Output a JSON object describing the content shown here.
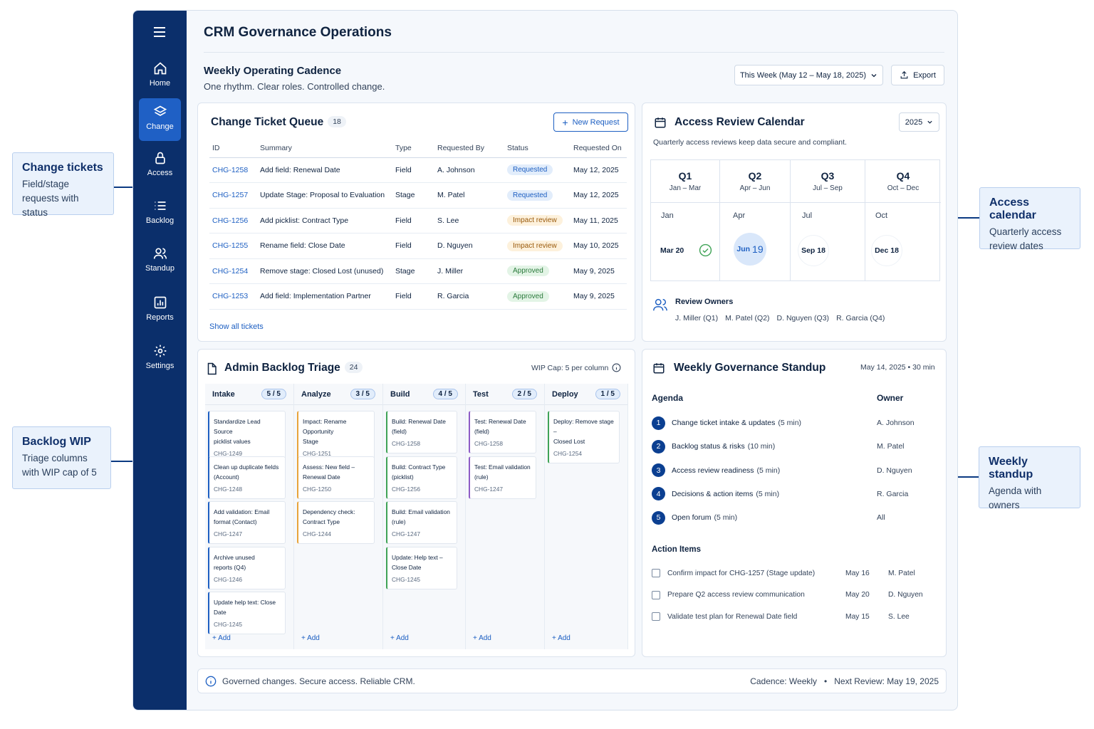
{
  "app_title": "CRM Governance Operations",
  "nav": [
    {
      "label": "Home",
      "icon": "home-icon"
    },
    {
      "label": "Change",
      "icon": "layers-icon",
      "active": true
    },
    {
      "label": "Access",
      "icon": "lock-icon"
    },
    {
      "label": "Backlog",
      "icon": "list-icon"
    },
    {
      "label": "Standup",
      "icon": "users-icon"
    },
    {
      "label": "Reports",
      "icon": "chart-icon"
    },
    {
      "label": "Settings",
      "icon": "gear-icon"
    }
  ],
  "header": {
    "title": "Weekly Operating Cadence",
    "subtitle": "One rhythm. Clear roles. Controlled change.",
    "week_select": "This Week (May 12 – May 18, 2025)",
    "export_label": "Export"
  },
  "tickets": {
    "title": "Change Ticket Queue",
    "count": "18",
    "new_request_label": "New Request",
    "columns": [
      "ID",
      "Summary",
      "Type",
      "Requested By",
      "Status",
      "Requested On"
    ],
    "rows": [
      {
        "id": "CHG-1258",
        "summary": "Add field: Renewal Date",
        "type": "Field",
        "by": "A. Johnson",
        "status": "Requested",
        "on": "May 12, 2025"
      },
      {
        "id": "CHG-1257",
        "summary": "Update Stage: Proposal to Evaluation",
        "type": "Stage",
        "by": "M. Patel",
        "status": "Requested",
        "on": "May 12, 2025"
      },
      {
        "id": "CHG-1256",
        "summary": "Add picklist: Contract Type",
        "type": "Field",
        "by": "S. Lee",
        "status": "Impact review",
        "on": "May 11, 2025"
      },
      {
        "id": "CHG-1255",
        "summary": "Rename field: Close Date",
        "type": "Field",
        "by": "D. Nguyen",
        "status": "Impact review",
        "on": "May 10, 2025"
      },
      {
        "id": "CHG-1254",
        "summary": "Remove stage: Closed Lost (unused)",
        "type": "Stage",
        "by": "J. Miller",
        "status": "Approved",
        "on": "May 9, 2025"
      },
      {
        "id": "CHG-1253",
        "summary": "Add field: Implementation Partner",
        "type": "Field",
        "by": "R. Garcia",
        "status": "Approved",
        "on": "May 9, 2025"
      }
    ],
    "show_all": "Show all tickets"
  },
  "calendar": {
    "title": "Access Review Calendar",
    "year": "2025",
    "subtitle": "Quarterly access reviews keep data secure and compliant.",
    "quarters": [
      {
        "name": "Q1",
        "range": "Jan – Mar",
        "month": "Jan",
        "date": "Mar 20",
        "done": true
      },
      {
        "name": "Q2",
        "range": "Apr – Jun",
        "month": "Apr",
        "date_mon": "Jun",
        "date_day": "19",
        "current": true
      },
      {
        "name": "Q3",
        "range": "Jul – Sep",
        "month": "Jul",
        "date": "Sep 18"
      },
      {
        "name": "Q4",
        "range": "Oct – Dec",
        "month": "Oct",
        "date": "Dec 18"
      }
    ],
    "owners_label": "Review Owners",
    "owners": [
      "J. Miller (Q1)",
      "M. Patel (Q2)",
      "D. Nguyen (Q3)",
      "R. Garcia (Q4)"
    ]
  },
  "backlog": {
    "title": "Admin Backlog Triage",
    "count": "24",
    "wip_cap": "WIP Cap: 5 per column",
    "add_label": "+ Add",
    "columns": [
      {
        "name": "Intake",
        "wip": "5 / 5",
        "color": "#1d5fc2",
        "cards": [
          {
            "t1": "Standardize Lead Source",
            "t2": "picklist values",
            "id": "CHG-1249"
          },
          {
            "t1": "Clean up duplicate fields",
            "t2": "(Account)",
            "id": "CHG-1248"
          },
          {
            "t1": "Add validation: Email",
            "t2": "format (Contact)",
            "id": "CHG-1247"
          },
          {
            "t1": "Archive unused",
            "t2": "reports (Q4)",
            "id": "CHG-1246"
          },
          {
            "t1": "Update help text: Close Date",
            "t2": "",
            "id": "CHG-1245"
          }
        ]
      },
      {
        "name": "Analyze",
        "wip": "3 / 5",
        "color": "#e8a33a",
        "cards": [
          {
            "t1": "Impact: Rename Opportunity",
            "t2": "Stage",
            "id": "CHG-1251"
          },
          {
            "t1": "Assess: New field –",
            "t2": "Renewal Date",
            "id": "CHG-1250"
          },
          {
            "t1": "Dependency check:",
            "t2": "Contract Type",
            "id": "CHG-1244"
          }
        ]
      },
      {
        "name": "Build",
        "wip": "4 / 5",
        "color": "#3fa356",
        "cards": [
          {
            "t1": "Build: Renewal Date",
            "t2": "(field)",
            "id": "CHG-1258"
          },
          {
            "t1": "Build: Contract Type",
            "t2": "(picklist)",
            "id": "CHG-1256"
          },
          {
            "t1": "Build: Email validation",
            "t2": "(rule)",
            "id": "CHG-1247"
          },
          {
            "t1": "Update: Help text –",
            "t2": "Close Date",
            "id": "CHG-1245"
          }
        ]
      },
      {
        "name": "Test",
        "wip": "2 / 5",
        "color": "#8e5cc6",
        "cards": [
          {
            "t1": "Test: Renewal Date",
            "t2": "(field)",
            "id": "CHG-1258"
          },
          {
            "t1": "Test: Email validation",
            "t2": "(rule)",
            "id": "CHG-1247"
          }
        ]
      },
      {
        "name": "Deploy",
        "wip": "1 / 5",
        "color": "#3fa356",
        "cards": [
          {
            "t1": "Deploy: Remove stage –",
            "t2": "Closed Lost",
            "id": "CHG-1254"
          }
        ]
      }
    ]
  },
  "standup": {
    "title": "Weekly Governance Standup",
    "meta": "May 14, 2025 • 30 min",
    "agenda_label": "Agenda",
    "owner_label": "Owner",
    "agenda": [
      {
        "n": "1",
        "item": "Change ticket intake & updates",
        "dur": "(5 min)",
        "owner": "A. Johnson"
      },
      {
        "n": "2",
        "item": "Backlog status & risks",
        "dur": "(10 min)",
        "owner": "M. Patel"
      },
      {
        "n": "3",
        "item": "Access review readiness",
        "dur": "(5 min)",
        "owner": "D. Nguyen"
      },
      {
        "n": "4",
        "item": "Decisions & action items",
        "dur": "(5 min)",
        "owner": "R. Garcia"
      },
      {
        "n": "5",
        "item": "Open forum",
        "dur": "(5 min)",
        "owner": "All"
      }
    ],
    "actions_label": "Action Items",
    "actions": [
      {
        "item": "Confirm impact for CHG-1257 (Stage update)",
        "due": "May 16",
        "owner": "M. Patel"
      },
      {
        "item": "Prepare Q2 access review communication",
        "due": "May 20",
        "owner": "D. Nguyen"
      },
      {
        "item": "Validate test plan for Renewal Date field",
        "due": "May 15",
        "owner": "S. Lee"
      }
    ]
  },
  "footer": {
    "message": "Governed changes. Secure access. Reliable CRM.",
    "cadence": "Cadence: Weekly",
    "next_review": "Next Review: May 19, 2025"
  },
  "callouts": [
    {
      "title": "Change tickets",
      "desc": "Field/stage requests with status"
    },
    {
      "title": "Backlog WIP",
      "desc": "Triage columns with WIP cap of 5"
    },
    {
      "title": "Access calendar",
      "desc": "Quarterly access review dates"
    },
    {
      "title": "Weekly standup",
      "desc": "Agenda with owners"
    }
  ]
}
